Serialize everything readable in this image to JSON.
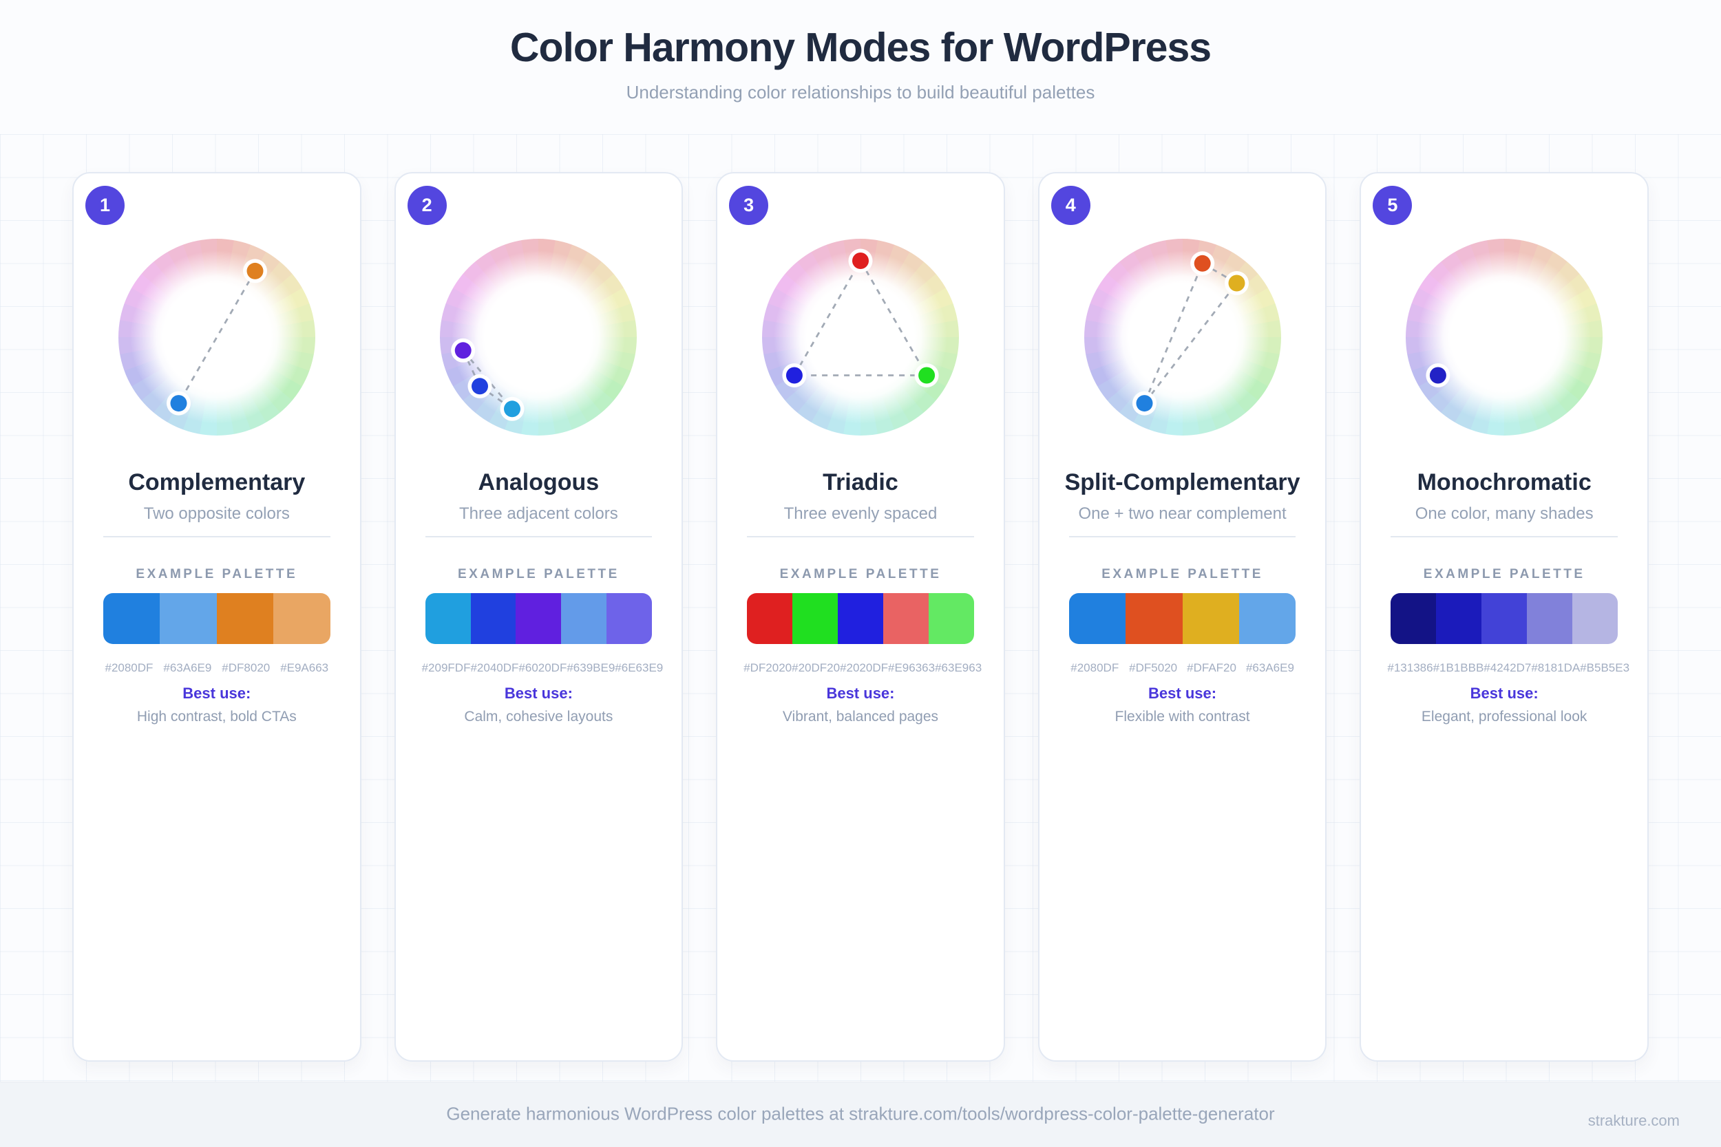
{
  "header": {
    "title": "Color Harmony Modes for WordPress",
    "subtitle": "Understanding color relationships to build beautiful palettes"
  },
  "wheel_style": {
    "segments": 36,
    "saturation": 64,
    "lightness": 84,
    "dot_orbit": 111,
    "line_color": "#99A1AE",
    "dot_halo_color": "#FFFFFF"
  },
  "cards": [
    {
      "number": "1",
      "title": "Complementary",
      "subtitle": "Two opposite colors",
      "palette_label": "EXAMPLE PALETTE",
      "swatches": [
        "#2080DF",
        "#63A6E9",
        "#DF8020",
        "#E9A663"
      ],
      "best_use_label": "Best use:",
      "best_use": "High contrast, bold CTAs",
      "wheel": {
        "dots": [
          {
            "hex": "#DF8020",
            "hue": 30
          },
          {
            "hex": "#2080DF",
            "hue": 210
          }
        ],
        "connections": [
          [
            0,
            1
          ]
        ]
      }
    },
    {
      "number": "2",
      "title": "Analogous",
      "subtitle": "Three adjacent colors",
      "palette_label": "EXAMPLE PALETTE",
      "swatches": [
        "#209FDF",
        "#2040DF",
        "#6020DF",
        "#639BE9",
        "#6E63E9"
      ],
      "best_use_label": "Best use:",
      "best_use": "Calm, cohesive layouts",
      "wheel": {
        "dots": [
          {
            "hex": "#6020DF",
            "hue": 260
          },
          {
            "hex": "#2040DF",
            "hue": 230
          },
          {
            "hex": "#209FDF",
            "hue": 200
          }
        ],
        "connections": [
          [
            0,
            1
          ],
          [
            1,
            2
          ],
          [
            0,
            2
          ]
        ]
      }
    },
    {
      "number": "3",
      "title": "Triadic",
      "subtitle": "Three evenly spaced",
      "palette_label": "EXAMPLE PALETTE",
      "swatches": [
        "#DF2020",
        "#20DF20",
        "#2020DF",
        "#E96363",
        "#63E963"
      ],
      "best_use_label": "Best use:",
      "best_use": "Vibrant, balanced pages",
      "wheel": {
        "dots": [
          {
            "hex": "#DF2020",
            "hue": 0
          },
          {
            "hex": "#20DF20",
            "hue": 120
          },
          {
            "hex": "#2020DF",
            "hue": 240
          }
        ],
        "connections": [
          [
            0,
            1
          ],
          [
            1,
            2
          ],
          [
            2,
            0
          ]
        ]
      }
    },
    {
      "number": "4",
      "title": "Split-Complementary",
      "subtitle": "One + two near complement",
      "palette_label": "EXAMPLE PALETTE",
      "swatches": [
        "#2080DF",
        "#DF5020",
        "#DFAF20",
        "#63A6E9"
      ],
      "best_use_label": "Best use:",
      "best_use": "Flexible with contrast",
      "wheel": {
        "dots": [
          {
            "hex": "#DF5020",
            "hue": 15
          },
          {
            "hex": "#DFAF20",
            "hue": 45
          },
          {
            "hex": "#2080DF",
            "hue": 210
          }
        ],
        "connections": [
          [
            2,
            0
          ],
          [
            2,
            1
          ],
          [
            0,
            1
          ]
        ]
      }
    },
    {
      "number": "5",
      "title": "Monochromatic",
      "subtitle": "One color, many shades",
      "palette_label": "EXAMPLE PALETTE",
      "swatches": [
        "#131386",
        "#1B1BBB",
        "#4242D7",
        "#8181DA",
        "#B5B5E3"
      ],
      "best_use_label": "Best use:",
      "best_use": "Elegant, professional look",
      "wheel": {
        "dots": [
          {
            "hex": "#2222C6",
            "hue": 240
          }
        ],
        "connections": []
      }
    }
  ],
  "footer": {
    "text": "Generate harmonious WordPress color palettes at strakture.com/tools/wordpress-color-palette-generator",
    "brand": "strakture.com"
  }
}
